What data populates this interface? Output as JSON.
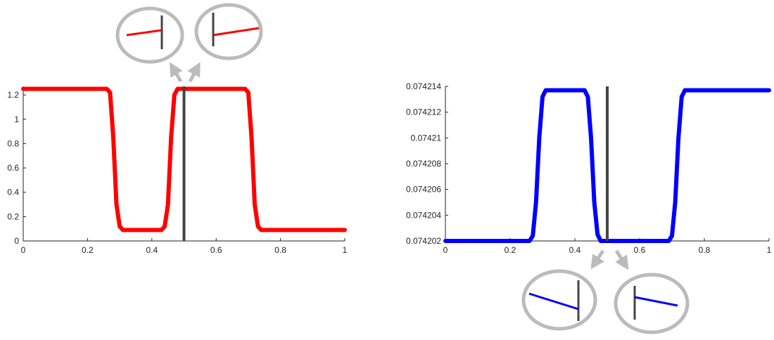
{
  "colors": {
    "left_curve": "#ff0000",
    "right_curve": "#0000ff",
    "interface_line": "#444444",
    "inset_ring": "#bbbbbb",
    "arrow": "#bbbbbb",
    "axis": "#222222"
  },
  "chart_data": [
    {
      "type": "line",
      "title": "",
      "xlabel": "",
      "ylabel": "",
      "xlim": [
        0,
        1
      ],
      "ylim": [
        0,
        1.27
      ],
      "xticks": [
        "0",
        "0.2",
        "0.4",
        "0.6",
        "0.8",
        "1"
      ],
      "xtick_values": [
        0,
        0.2,
        0.4,
        0.6,
        0.8,
        1
      ],
      "yticks": [
        "0",
        "0.2",
        "0.4",
        "0.6",
        "0.8",
        "1",
        "1.2"
      ],
      "ytick_values": [
        0,
        0.2,
        0.4,
        0.6,
        0.8,
        1,
        1.2
      ],
      "grid": false,
      "series": [
        {
          "color": "#ff0000",
          "x": [
            0,
            0.26,
            0.27,
            0.28,
            0.29,
            0.3,
            0.31,
            0.43,
            0.44,
            0.45,
            0.46,
            0.47,
            0.48,
            0.49,
            0.69,
            0.7,
            0.71,
            0.72,
            0.73,
            0.74,
            1
          ],
          "y": [
            1.25,
            1.25,
            1.22,
            0.85,
            0.3,
            0.12,
            0.09,
            0.09,
            0.12,
            0.3,
            0.85,
            1.2,
            1.25,
            1.25,
            1.25,
            1.22,
            0.85,
            0.3,
            0.12,
            0.09,
            0.09
          ]
        }
      ],
      "vline_x": 0.5
    },
    {
      "type": "line",
      "title": "",
      "xlabel": "",
      "ylabel": "",
      "xlim": [
        0,
        1
      ],
      "ylim": [
        0.074202,
        0.074214
      ],
      "xticks": [
        "0",
        "0.2",
        "0.4",
        "0.6",
        "0.8",
        "1"
      ],
      "xtick_values": [
        0,
        0.2,
        0.4,
        0.6,
        0.8,
        1
      ],
      "yticks": [
        "0.074202",
        "0.074204",
        "0.074206",
        "0.074208",
        "0.07421",
        "0.074212",
        "0.074214"
      ],
      "ytick_values": [
        0.074202,
        0.074204,
        0.074206,
        0.074208,
        0.07421,
        0.074212,
        0.074214
      ],
      "grid": false,
      "series": [
        {
          "color": "#0000ff",
          "x": [
            0,
            0.26,
            0.27,
            0.28,
            0.29,
            0.3,
            0.31,
            0.43,
            0.44,
            0.45,
            0.46,
            0.47,
            0.48,
            0.49,
            0.69,
            0.7,
            0.71,
            0.72,
            0.73,
            0.74,
            1
          ],
          "y": [
            0.074202,
            0.074202,
            0.0742024,
            0.074205,
            0.07421,
            0.0742132,
            0.0742137,
            0.0742137,
            0.0742132,
            0.07421,
            0.074205,
            0.0742025,
            0.074202,
            0.074202,
            0.074202,
            0.0742024,
            0.074205,
            0.07421,
            0.0742132,
            0.0742137,
            0.0742137
          ]
        }
      ],
      "vline_x": 0.5
    }
  ]
}
